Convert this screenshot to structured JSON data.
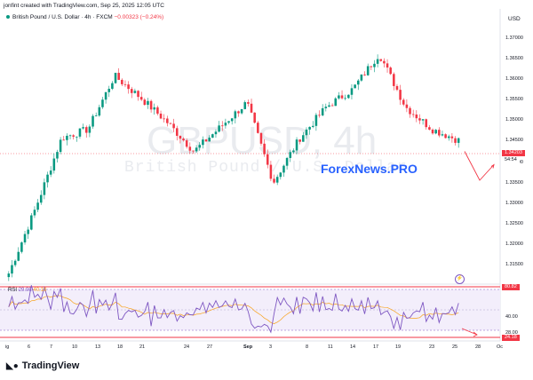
{
  "credit": "jonfint created with TradingView.com, Sep 25, 2025 12:05 UTC",
  "legend": {
    "symbol": "British Pound / U.S. Dollar · 4h · FXCM",
    "change": "−0.00323 (−0.24%)"
  },
  "watermark": {
    "ticker": "GBPUSD, 4h",
    "name": "British Pound / U.S. Dollar"
  },
  "brand_overlay": "ForexNews.PRO",
  "currency": "USD",
  "price_axis": [
    "1.37000",
    "1.36500",
    "1.36000",
    "1.35500",
    "1.35000",
    "1.34500",
    "1.34000",
    "1.33500",
    "1.33000",
    "1.32500",
    "1.32000",
    "1.31500"
  ],
  "last_price": {
    "value": "1.34203",
    "countdown": "54:54"
  },
  "time_axis": [
    "ig",
    "6",
    "7",
    "10",
    "13",
    "18",
    "21",
    "24",
    "27",
    "Sep",
    "3",
    "8",
    "11",
    "14",
    "17",
    "19",
    "23",
    "25",
    "28",
    "Oc"
  ],
  "rsi": {
    "label": "RSI",
    "value": "29.98",
    "ma_value": "40.18",
    "axis": [
      "40.00",
      "28.00"
    ],
    "upper_tag": "80.82",
    "lower_tag": "24.18"
  },
  "footer": {
    "brand": "TradingView"
  },
  "colors": {
    "up": "#089981",
    "down": "#f23645",
    "rsi_line": "#7e57c2",
    "rsi_ma": "#f7a21b",
    "band": "#e9e1f7",
    "forecast": "#f23645"
  },
  "chart_data": {
    "type": "candlestick",
    "symbol": "GBPUSD",
    "interval": "4h",
    "ylim": [
      1.3125,
      1.3725
    ],
    "x": [
      "ig",
      "6",
      "7",
      "10",
      "13",
      "18",
      "21",
      "24",
      "27",
      "Sep",
      "3",
      "8",
      "11",
      "14",
      "17",
      "19",
      "23",
      "25"
    ],
    "close": [
      1.3145,
      1.329,
      1.345,
      1.347,
      1.359,
      1.354,
      1.3485,
      1.342,
      1.3475,
      1.353,
      1.335,
      1.345,
      1.352,
      1.356,
      1.364,
      1.352,
      1.347,
      1.3445
    ],
    "forecast": [
      1.342,
      1.3355,
      1.339
    ]
  }
}
